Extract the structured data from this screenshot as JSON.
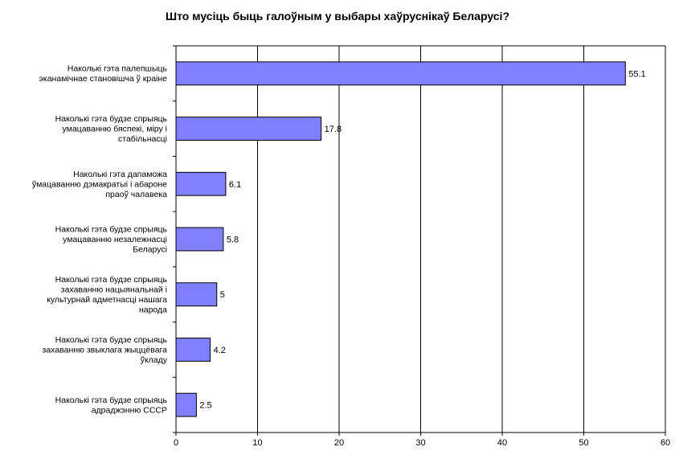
{
  "chart_data": {
    "type": "bar",
    "orientation": "horizontal",
    "title": "Што мусіць быць галоўным у выбары хаўруснікаў Беларусі?",
    "categories": [
      [
        "Наколькі гэта палепшыць",
        "эканамічнае становішча ў краіне"
      ],
      [
        "Наколькі гэта будзе спрыяць",
        "умацаванню бяспекі, міру і",
        "стабільнасці"
      ],
      [
        "Наколькі гэта дапаможа",
        "ўмацаванню дэмакратыі і абароне",
        "праоў чалавека"
      ],
      [
        "Наколькі гэта будзе спрыяць",
        "умацаванню незалежнасці",
        "Беларусі"
      ],
      [
        "Наколькі гэта будзе спрыяць",
        "захаванню нацыянальнай і",
        "культурнай адметнасці нашага",
        "народа"
      ],
      [
        "Наколькі гэта будзе спрыяць",
        "захаванню звыклага жыццёвага",
        "ўкладу"
      ],
      [
        "Наколькі гэта будзе спрыяць",
        "адраджэнню СССР"
      ]
    ],
    "values": [
      55.1,
      17.8,
      6.1,
      5.8,
      5,
      4.2,
      2.5
    ],
    "data_labels": [
      "55.1",
      "17.8",
      "6.1",
      "5.8",
      "5",
      "4.2",
      "2.5"
    ],
    "xlim": [
      0,
      60
    ],
    "xticks": [
      "0",
      "10",
      "20",
      "30",
      "40",
      "50",
      "60"
    ],
    "grid": true,
    "xlabel": "",
    "ylabel": "",
    "colors": {
      "bar_fill": "#8080ff",
      "bar_stroke": "#000000",
      "grid": "#000000",
      "background": "#ffffff"
    }
  }
}
